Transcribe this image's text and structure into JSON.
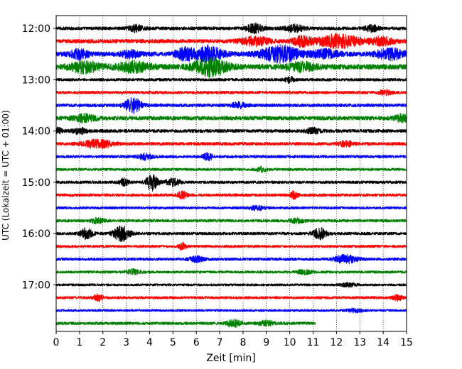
{
  "chart_data": {
    "type": "line",
    "title": "",
    "xlabel": "Zeit  [min]",
    "ylabel": "UTC (Lokalzeit = UTC + 01:00)",
    "xlim": [
      0,
      15
    ],
    "x_ticks": [
      "0",
      "1",
      "2",
      "3",
      "4",
      "5",
      "6",
      "7",
      "8",
      "9",
      "10",
      "11",
      "12",
      "13",
      "14",
      "15"
    ],
    "y_ticks": [
      "12:00",
      "13:00",
      "14:00",
      "15:00",
      "16:00",
      "17:00"
    ],
    "y_tick_rows": [
      0,
      4,
      8,
      12,
      16,
      20
    ],
    "grid": "vertical dotted lines at each minute",
    "colors": [
      "#000000",
      "#ff0000",
      "#0000ff",
      "#008000"
    ],
    "traces": [
      {
        "start": "12:00",
        "amp": 0.25,
        "bursts": [
          {
            "t": 3.4,
            "a": 0.5,
            "w": 0.3
          },
          {
            "t": 8.5,
            "a": 0.7,
            "w": 0.35
          },
          {
            "t": 10.2,
            "a": 0.5,
            "w": 0.4
          },
          {
            "t": 13.5,
            "a": 0.45,
            "w": 0.3
          }
        ]
      },
      {
        "start": "12:15",
        "amp": 0.3,
        "bursts": [
          {
            "t": 8.5,
            "a": 0.6,
            "w": 0.6
          },
          {
            "t": 10.5,
            "a": 0.7,
            "w": 0.4
          },
          {
            "t": 12.1,
            "a": 1.0,
            "w": 0.9
          },
          {
            "t": 14.0,
            "a": 0.6,
            "w": 0.5
          }
        ]
      },
      {
        "start": "12:30",
        "amp": 0.35,
        "bursts": [
          {
            "t": 1.0,
            "a": 0.7,
            "w": 0.4
          },
          {
            "t": 3.2,
            "a": 0.5,
            "w": 0.4
          },
          {
            "t": 5.5,
            "a": 0.8,
            "w": 0.4
          },
          {
            "t": 6.5,
            "a": 1.1,
            "w": 0.6
          },
          {
            "t": 9.6,
            "a": 1.2,
            "w": 0.8
          },
          {
            "t": 11.5,
            "a": 0.6,
            "w": 0.6
          },
          {
            "t": 14.3,
            "a": 0.8,
            "w": 0.6
          }
        ]
      },
      {
        "start": "12:45",
        "amp": 0.4,
        "bursts": [
          {
            "t": 1.2,
            "a": 0.8,
            "w": 0.6
          },
          {
            "t": 3.3,
            "a": 0.7,
            "w": 0.7
          },
          {
            "t": 6.6,
            "a": 1.3,
            "w": 0.7
          },
          {
            "t": 10.5,
            "a": 0.6,
            "w": 0.6
          }
        ]
      },
      {
        "start": "13:00",
        "amp": 0.22,
        "bursts": [
          {
            "t": 10.0,
            "a": 0.4,
            "w": 0.2
          }
        ]
      },
      {
        "start": "13:15",
        "amp": 0.22,
        "bursts": [
          {
            "t": 14.1,
            "a": 0.3,
            "w": 0.3
          }
        ]
      },
      {
        "start": "13:30",
        "amp": 0.25,
        "bursts": [
          {
            "t": 3.3,
            "a": 1.1,
            "w": 0.35
          },
          {
            "t": 7.8,
            "a": 0.4,
            "w": 0.3
          }
        ]
      },
      {
        "start": "13:45",
        "amp": 0.3,
        "bursts": [
          {
            "t": 1.2,
            "a": 0.5,
            "w": 0.5
          },
          {
            "t": 14.8,
            "a": 0.5,
            "w": 0.3
          }
        ]
      },
      {
        "start": "14:00",
        "amp": 0.25,
        "bursts": [
          {
            "t": 0.1,
            "a": 0.5,
            "w": 0.15
          },
          {
            "t": 1.0,
            "a": 0.4,
            "w": 0.3
          },
          {
            "t": 11.0,
            "a": 0.4,
            "w": 0.3
          }
        ]
      },
      {
        "start": "14:15",
        "amp": 0.25,
        "bursts": [
          {
            "t": 1.8,
            "a": 0.6,
            "w": 0.6
          },
          {
            "t": 12.4,
            "a": 0.4,
            "w": 0.3
          }
        ]
      },
      {
        "start": "14:30",
        "amp": 0.22,
        "bursts": [
          {
            "t": 3.8,
            "a": 0.4,
            "w": 0.3
          },
          {
            "t": 6.5,
            "a": 0.5,
            "w": 0.2
          }
        ]
      },
      {
        "start": "14:45",
        "amp": 0.2,
        "bursts": [
          {
            "t": 8.8,
            "a": 0.35,
            "w": 0.2
          }
        ]
      },
      {
        "start": "15:00",
        "amp": 0.22,
        "bursts": [
          {
            "t": 2.9,
            "a": 0.5,
            "w": 0.2
          },
          {
            "t": 4.1,
            "a": 1.2,
            "w": 0.25
          },
          {
            "t": 5.0,
            "a": 0.5,
            "w": 0.3
          }
        ]
      },
      {
        "start": "15:15",
        "amp": 0.22,
        "bursts": [
          {
            "t": 5.4,
            "a": 0.5,
            "w": 0.2
          },
          {
            "t": 10.2,
            "a": 0.6,
            "w": 0.15
          }
        ]
      },
      {
        "start": "15:30",
        "amp": 0.2,
        "bursts": [
          {
            "t": 8.6,
            "a": 0.3,
            "w": 0.3
          }
        ]
      },
      {
        "start": "15:45",
        "amp": 0.22,
        "bursts": [
          {
            "t": 1.8,
            "a": 0.35,
            "w": 0.3
          },
          {
            "t": 10.3,
            "a": 0.3,
            "w": 0.3
          }
        ]
      },
      {
        "start": "16:00",
        "amp": 0.22,
        "bursts": [
          {
            "t": 1.3,
            "a": 0.8,
            "w": 0.25
          },
          {
            "t": 2.8,
            "a": 1.1,
            "w": 0.35
          },
          {
            "t": 11.3,
            "a": 0.8,
            "w": 0.3
          }
        ]
      },
      {
        "start": "16:15",
        "amp": 0.2,
        "bursts": [
          {
            "t": 5.4,
            "a": 0.5,
            "w": 0.15
          }
        ]
      },
      {
        "start": "16:30",
        "amp": 0.22,
        "bursts": [
          {
            "t": 6.0,
            "a": 0.4,
            "w": 0.3
          },
          {
            "t": 12.4,
            "a": 0.6,
            "w": 0.5
          }
        ]
      },
      {
        "start": "16:45",
        "amp": 0.2,
        "bursts": [
          {
            "t": 3.3,
            "a": 0.35,
            "w": 0.3
          },
          {
            "t": 10.6,
            "a": 0.3,
            "w": 0.3
          }
        ]
      },
      {
        "start": "17:00",
        "amp": 0.18,
        "bursts": [
          {
            "t": 12.5,
            "a": 0.3,
            "w": 0.3
          }
        ]
      },
      {
        "start": "17:15",
        "amp": 0.2,
        "bursts": [
          {
            "t": 1.8,
            "a": 0.45,
            "w": 0.2
          },
          {
            "t": 14.6,
            "a": 0.4,
            "w": 0.2
          }
        ]
      },
      {
        "start": "17:30",
        "amp": 0.18,
        "bursts": [
          {
            "t": 12.8,
            "a": 0.3,
            "w": 0.3
          }
        ]
      },
      {
        "start": "17:45",
        "amp": 0.22,
        "end": 11.1,
        "bursts": [
          {
            "t": 7.6,
            "a": 0.5,
            "w": 0.3
          },
          {
            "t": 9.0,
            "a": 0.35,
            "w": 0.3
          }
        ]
      }
    ]
  }
}
